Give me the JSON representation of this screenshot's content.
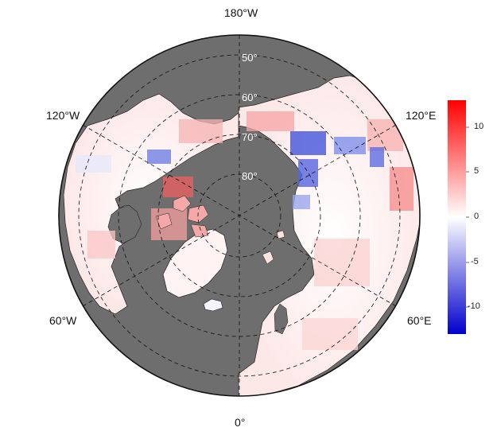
{
  "map": {
    "projection": "north-polar-stereographic",
    "ocean_color": "#6e6e6e",
    "longitude_labels": {
      "top": "180°W",
      "bottom": "0°",
      "upper_left": "120°W",
      "upper_right": "120°E",
      "lower_left": "60°W",
      "lower_right": "60°E"
    },
    "latitude_labels": [
      "50°",
      "60°",
      "70°",
      "80°"
    ]
  },
  "colorbar": {
    "min": -12.5,
    "max": 12.5,
    "ticks": [
      "10",
      "5",
      "0",
      "-5",
      "-10"
    ],
    "low_color": "#0000cc",
    "mid_color": "#ffffff",
    "high_color": "#ff0000"
  }
}
